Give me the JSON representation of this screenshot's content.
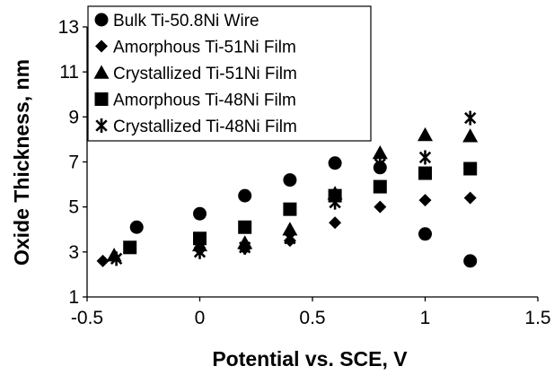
{
  "chart_data": {
    "type": "scatter",
    "title": "",
    "xlabel": "Potential vs. SCE, V",
    "ylabel": "Oxide Thickness, nm",
    "xlim": [
      -0.5,
      1.5
    ],
    "ylim": [
      1,
      13
    ],
    "xticks": [
      -0.5,
      0,
      0.5,
      1,
      1.5
    ],
    "yticks": [
      1,
      3,
      5,
      7,
      9,
      11,
      13
    ],
    "xtick_labels": [
      "-0.5",
      "0",
      "0.5",
      "1",
      "1.5"
    ],
    "ytick_labels": [
      "1",
      "3",
      "5",
      "7",
      "9",
      "11",
      "13"
    ],
    "grid": false,
    "legend_position": "top-left",
    "marker_color": "#000000",
    "series": [
      {
        "name": "Bulk Ti-50.8Ni Wire",
        "marker": "circle",
        "x": [
          -0.28,
          0.0,
          0.2,
          0.4,
          0.6,
          0.8,
          1.0,
          1.2
        ],
        "y": [
          4.1,
          4.7,
          5.5,
          6.2,
          6.95,
          6.75,
          3.8,
          2.6
        ]
      },
      {
        "name": "Amorphous Ti-51Ni Film",
        "marker": "diamond",
        "x": [
          -0.43,
          0.0,
          0.2,
          0.4,
          0.6,
          0.8,
          1.0,
          1.2
        ],
        "y": [
          2.6,
          3.1,
          3.15,
          3.5,
          4.3,
          5.0,
          5.3,
          5.4
        ]
      },
      {
        "name": "Crystallized Ti-51Ni Film",
        "marker": "triangle",
        "x": [
          -0.38,
          0.0,
          0.2,
          0.4,
          0.6,
          0.8,
          1.0,
          1.2
        ],
        "y": [
          2.85,
          3.3,
          3.4,
          4.0,
          5.6,
          7.4,
          8.2,
          8.15
        ]
      },
      {
        "name": "Amorphous Ti-48Ni Film",
        "marker": "square",
        "x": [
          -0.31,
          0.0,
          0.2,
          0.4,
          0.6,
          0.8,
          1.0,
          1.2
        ],
        "y": [
          3.2,
          3.6,
          4.1,
          4.9,
          5.5,
          5.9,
          6.5,
          6.7
        ]
      },
      {
        "name": "Crystallized Ti-48Ni Film",
        "marker": "asterisk",
        "x": [
          -0.37,
          0.0,
          0.2,
          0.4,
          0.6,
          0.8,
          1.0,
          1.2
        ],
        "y": [
          2.7,
          3.0,
          3.2,
          3.6,
          5.2,
          6.9,
          7.2,
          8.95
        ]
      }
    ]
  }
}
